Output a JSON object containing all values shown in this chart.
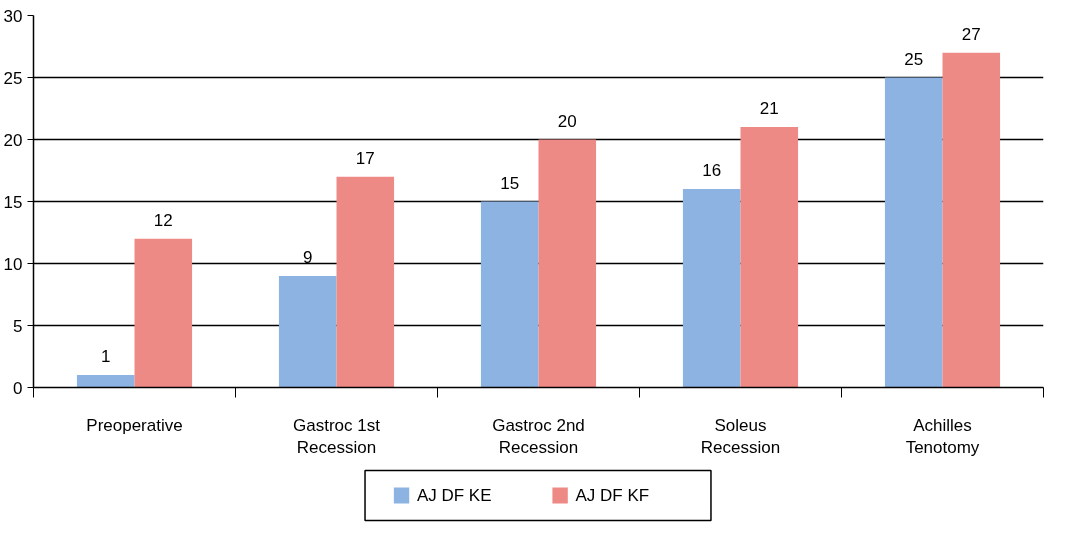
{
  "chart_data": {
    "type": "bar",
    "categories": [
      "Preoperative",
      "Gastroc 1st\nRecession",
      "Gastroc 2nd\nRecession",
      "Soleus\nRecession",
      "Achilles\nTenotomy"
    ],
    "series": [
      {
        "name": "AJ DF KE",
        "color": "#8db3e2",
        "values": [
          1,
          9,
          15,
          16,
          25
        ]
      },
      {
        "name": "AJ DF KF",
        "color": "#ee8a85",
        "values": [
          12,
          17,
          20,
          21,
          27
        ]
      }
    ],
    "ylim": [
      0,
      30
    ],
    "yticks": [
      0,
      5,
      10,
      15,
      20,
      25,
      30
    ],
    "grid": "y",
    "legend": "bottom",
    "data_labels": true
  }
}
